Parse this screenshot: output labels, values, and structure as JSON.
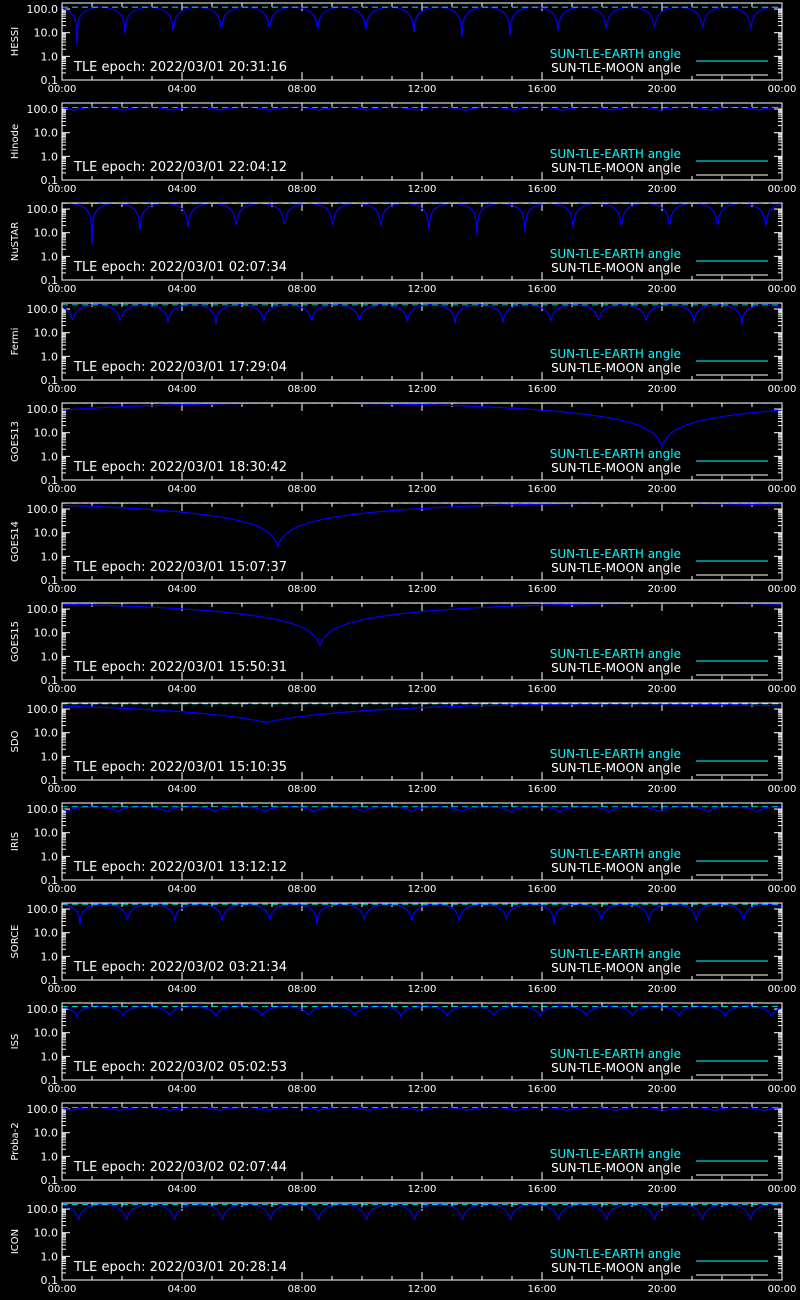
{
  "figure": {
    "background": "#000000",
    "axis_color": "#ffffff",
    "earth_color": "#00ffff",
    "moon_color": "#ffffff",
    "curve_color": "#0000ff"
  },
  "shared": {
    "x_ticks": [
      "00:00",
      "04:00",
      "08:00",
      "12:00",
      "16:00",
      "20:00",
      "00:00"
    ],
    "y_ticks": [
      "100.0",
      "10.0",
      "1.0",
      "0.1"
    ],
    "legend_earth": "SUN-TLE-EARTH angle",
    "legend_moon": "SUN-TLE-MOON angle"
  },
  "chart_data": [
    {
      "type": "line",
      "ylabel": "HESSI",
      "epoch": "TLE epoch: 2022/03/01 20:31:16",
      "yscale": "log",
      "ylim": [
        0.1,
        180
      ],
      "xlim_hours": [
        0,
        24
      ],
      "series": [
        {
          "name": "SUN-TLE-EARTH angle",
          "model": "leo",
          "period_hours": 1.604,
          "min_deg": 3,
          "max_deg": 120,
          "phase_hours": 0.5
        }
      ]
    },
    {
      "type": "line",
      "ylabel": "Hinode",
      "epoch": "TLE epoch: 2022/03/01 22:04:12",
      "yscale": "log",
      "ylim": [
        0.1,
        180
      ],
      "xlim_hours": [
        0,
        24
      ],
      "series": [
        {
          "name": "SUN-TLE-EARTH angle",
          "model": "leo",
          "period_hours": 1.63,
          "min_deg": 85,
          "max_deg": 118,
          "phase_hours": 0.4
        }
      ]
    },
    {
      "type": "line",
      "ylabel": "NuSTAR",
      "epoch": "TLE epoch: 2022/03/01 02:07:34",
      "yscale": "log",
      "ylim": [
        0.1,
        180
      ],
      "xlim_hours": [
        0,
        24
      ],
      "series": [
        {
          "name": "SUN-TLE-EARTH angle",
          "model": "leo",
          "period_hours": 1.604,
          "min_deg": 3,
          "max_deg": 175,
          "phase_hours": 1.0
        }
      ]
    },
    {
      "type": "line",
      "ylabel": "Fermi",
      "epoch": "TLE epoch: 2022/03/01 17:29:04",
      "yscale": "log",
      "ylim": [
        0.1,
        180
      ],
      "xlim_hours": [
        0,
        24
      ],
      "series": [
        {
          "name": "SUN-TLE-EARTH angle",
          "model": "leo",
          "period_hours": 1.594,
          "min_deg": 20,
          "max_deg": 150,
          "phase_hours": 0.35
        }
      ]
    },
    {
      "type": "line",
      "ylabel": "GOES13",
      "epoch": "TLE epoch: 2022/03/01 18:30:42",
      "yscale": "log",
      "ylim": [
        0.1,
        180
      ],
      "xlim_hours": [
        0,
        24
      ],
      "series": [
        {
          "name": "SUN-TLE-EARTH angle",
          "model": "geo",
          "min_hour": 20.0,
          "min_deg": 2.5,
          "max_deg": 177
        }
      ]
    },
    {
      "type": "line",
      "ylabel": "GOES14",
      "epoch": "TLE epoch: 2022/03/01 15:07:37",
      "yscale": "log",
      "ylim": [
        0.1,
        180
      ],
      "xlim_hours": [
        0,
        24
      ],
      "series": [
        {
          "name": "SUN-TLE-EARTH angle",
          "model": "geo",
          "min_hour": 7.2,
          "min_deg": 2.7,
          "max_deg": 177
        }
      ]
    },
    {
      "type": "line",
      "ylabel": "GOES15",
      "epoch": "TLE epoch: 2022/03/01 15:50:31",
      "yscale": "log",
      "ylim": [
        0.1,
        180
      ],
      "xlim_hours": [
        0,
        24
      ],
      "series": [
        {
          "name": "SUN-TLE-EARTH angle",
          "model": "geo",
          "min_hour": 8.6,
          "min_deg": 3.0,
          "max_deg": 177
        }
      ]
    },
    {
      "type": "line",
      "ylabel": "SDO",
      "epoch": "TLE epoch: 2022/03/01 15:10:35",
      "yscale": "log",
      "ylim": [
        0.1,
        180
      ],
      "xlim_hours": [
        0,
        24
      ],
      "series": [
        {
          "name": "SUN-TLE-EARTH angle",
          "model": "geo",
          "min_hour": 6.8,
          "min_deg": 27,
          "max_deg": 165
        }
      ]
    },
    {
      "type": "line",
      "ylabel": "IRIS",
      "epoch": "TLE epoch: 2022/03/01 13:12:12",
      "yscale": "log",
      "ylim": [
        0.1,
        180
      ],
      "xlim_hours": [
        0,
        24
      ],
      "series": [
        {
          "name": "SUN-TLE-EARTH angle",
          "model": "leo",
          "period_hours": 1.64,
          "min_deg": 72,
          "max_deg": 125,
          "phase_hours": 0.2
        }
      ]
    },
    {
      "type": "line",
      "ylabel": "SORCE",
      "epoch": "TLE epoch: 2022/03/02 03:21:34",
      "yscale": "log",
      "ylim": [
        0.1,
        180
      ],
      "xlim_hours": [
        0,
        24
      ],
      "series": [
        {
          "name": "SUN-TLE-EARTH angle",
          "model": "leo",
          "period_hours": 1.58,
          "min_deg": 22,
          "max_deg": 160,
          "phase_hours": 0.6
        }
      ]
    },
    {
      "type": "line",
      "ylabel": "ISS",
      "epoch": "TLE epoch: 2022/03/02 05:02:53",
      "yscale": "log",
      "ylim": [
        0.1,
        180
      ],
      "xlim_hours": [
        0,
        24
      ],
      "series": [
        {
          "name": "SUN-TLE-EARTH angle",
          "model": "leo",
          "period_hours": 1.543,
          "min_deg": 45,
          "max_deg": 130,
          "phase_hours": 0.5
        }
      ]
    },
    {
      "type": "line",
      "ylabel": "Proba-2",
      "epoch": "TLE epoch: 2022/03/02 02:07:44",
      "yscale": "log",
      "ylim": [
        0.1,
        180
      ],
      "xlim_hours": [
        0,
        24
      ],
      "series": [
        {
          "name": "SUN-TLE-EARTH angle",
          "model": "leo",
          "period_hours": 1.65,
          "min_deg": 85,
          "max_deg": 115,
          "phase_hours": 0.3
        }
      ]
    },
    {
      "type": "line",
      "ylabel": "ICON",
      "epoch": "TLE epoch: 2022/03/01 20:28:14",
      "yscale": "log",
      "ylim": [
        0.1,
        180
      ],
      "xlim_hours": [
        0,
        24
      ],
      "series": [
        {
          "name": "SUN-TLE-EARTH angle",
          "model": "leo",
          "period_hours": 1.6,
          "min_deg": 20,
          "max_deg": 155,
          "phase_hours": 0.55
        }
      ]
    }
  ]
}
